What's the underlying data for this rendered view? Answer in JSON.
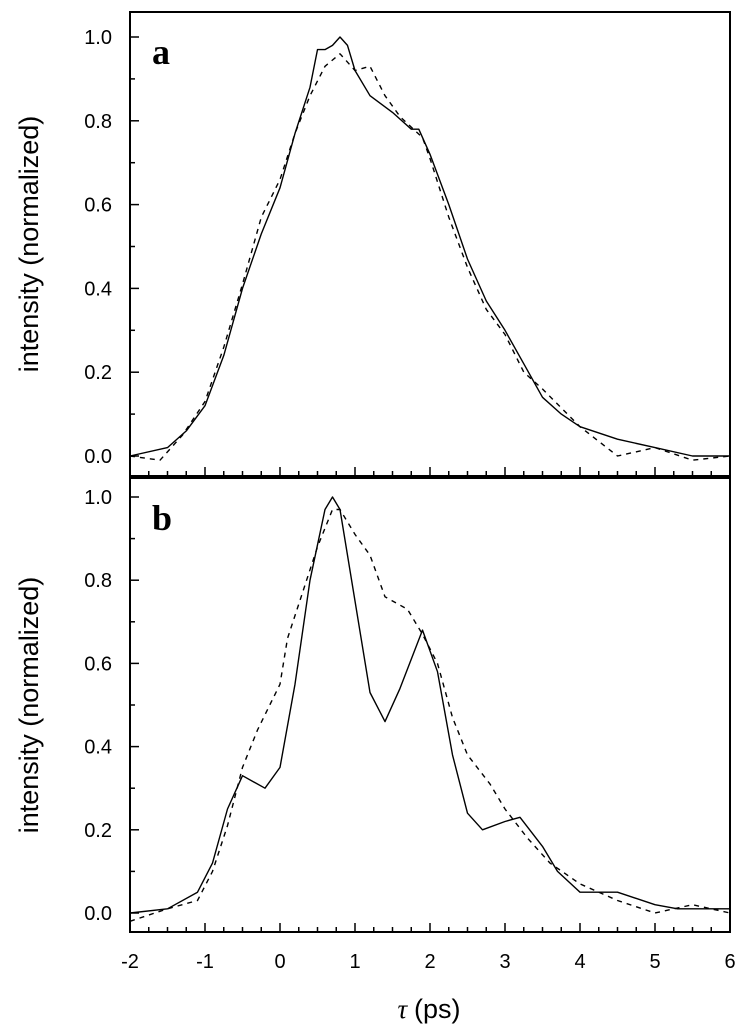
{
  "chart_data": [
    {
      "type": "line",
      "panel_label": "a",
      "ylabel": "intensity (normalized)",
      "xlabel": "",
      "xlim": [
        -2,
        6
      ],
      "ylim": [
        -0.05,
        1.05
      ],
      "xticks": [
        -2,
        -1,
        0,
        1,
        2,
        3,
        4,
        5,
        6
      ],
      "yticks": [
        "0.0",
        "0.2",
        "0.4",
        "0.6",
        "0.8",
        "1.0"
      ],
      "grid": false,
      "series": [
        {
          "style": "solid",
          "x": [
            -2,
            -1.5,
            -1.25,
            -1,
            -0.75,
            -0.5,
            -0.25,
            0,
            0.2,
            0.4,
            0.5,
            0.6,
            0.7,
            0.8,
            0.9,
            1.0,
            1.2,
            1.5,
            1.75,
            1.85,
            2.0,
            2.25,
            2.5,
            2.75,
            3.0,
            3.25,
            3.5,
            3.75,
            4.0,
            4.5,
            5.0,
            5.5,
            6
          ],
          "y": [
            0.0,
            0.02,
            0.06,
            0.12,
            0.24,
            0.4,
            0.53,
            0.64,
            0.77,
            0.88,
            0.97,
            0.97,
            0.98,
            1.0,
            0.98,
            0.92,
            0.86,
            0.82,
            0.78,
            0.78,
            0.72,
            0.6,
            0.47,
            0.37,
            0.3,
            0.22,
            0.14,
            0.1,
            0.07,
            0.04,
            0.02,
            0.0,
            0.0
          ]
        },
        {
          "style": "dashed",
          "x": [
            -2,
            -1.6,
            -1.3,
            -1,
            -0.75,
            -0.5,
            -0.25,
            0,
            0.2,
            0.4,
            0.6,
            0.8,
            1.0,
            1.2,
            1.4,
            1.6,
            1.9,
            2.0,
            2.25,
            2.5,
            2.75,
            3.0,
            3.25,
            3.5,
            4.0,
            4.5,
            5.0,
            5.5,
            6
          ],
          "y": [
            0.0,
            -0.01,
            0.05,
            0.13,
            0.26,
            0.41,
            0.57,
            0.66,
            0.77,
            0.86,
            0.93,
            0.96,
            0.92,
            0.93,
            0.86,
            0.81,
            0.76,
            0.71,
            0.57,
            0.45,
            0.35,
            0.29,
            0.2,
            0.16,
            0.07,
            0.0,
            0.02,
            -0.01,
            0.0
          ]
        }
      ]
    },
    {
      "type": "line",
      "panel_label": "b",
      "ylabel": "intensity (normalized)",
      "xlabel": "τ (ps)",
      "xlim": [
        -2,
        6
      ],
      "ylim": [
        -0.05,
        1.05
      ],
      "xticks": [
        "-2",
        "-1",
        "0",
        "1",
        "2",
        "3",
        "4",
        "5",
        "6"
      ],
      "yticks": [
        "0.0",
        "0.2",
        "0.4",
        "0.6",
        "0.8",
        "1.0"
      ],
      "grid": false,
      "series": [
        {
          "style": "solid",
          "x": [
            -2,
            -1.5,
            -1.1,
            -0.9,
            -0.7,
            -0.5,
            -0.2,
            0,
            0.2,
            0.4,
            0.6,
            0.7,
            0.8,
            1.0,
            1.2,
            1.4,
            1.6,
            1.9,
            2.1,
            2.3,
            2.5,
            2.7,
            3.0,
            3.2,
            3.5,
            3.7,
            4.0,
            4.5,
            5.0,
            5.3,
            6
          ],
          "y": [
            0.0,
            0.01,
            0.05,
            0.12,
            0.25,
            0.33,
            0.3,
            0.35,
            0.55,
            0.8,
            0.97,
            1.0,
            0.97,
            0.75,
            0.53,
            0.46,
            0.54,
            0.68,
            0.58,
            0.38,
            0.24,
            0.2,
            0.22,
            0.23,
            0.16,
            0.1,
            0.05,
            0.05,
            0.02,
            0.01,
            0.01
          ]
        },
        {
          "style": "dashed",
          "x": [
            -2,
            -1.5,
            -1.1,
            -0.9,
            -0.7,
            -0.5,
            -0.3,
            0,
            0.1,
            0.3,
            0.5,
            0.7,
            0.8,
            1.0,
            1.2,
            1.4,
            1.7,
            1.9,
            2.1,
            2.3,
            2.5,
            2.8,
            3.0,
            3.3,
            3.6,
            4.0,
            4.5,
            5.0,
            5.5,
            6
          ],
          "y": [
            -0.02,
            0.01,
            0.03,
            0.1,
            0.21,
            0.35,
            0.44,
            0.55,
            0.66,
            0.77,
            0.88,
            0.97,
            0.97,
            0.91,
            0.86,
            0.76,
            0.73,
            0.67,
            0.6,
            0.47,
            0.38,
            0.31,
            0.25,
            0.18,
            0.12,
            0.07,
            0.03,
            0.0,
            0.02,
            0.0
          ]
        }
      ]
    }
  ]
}
